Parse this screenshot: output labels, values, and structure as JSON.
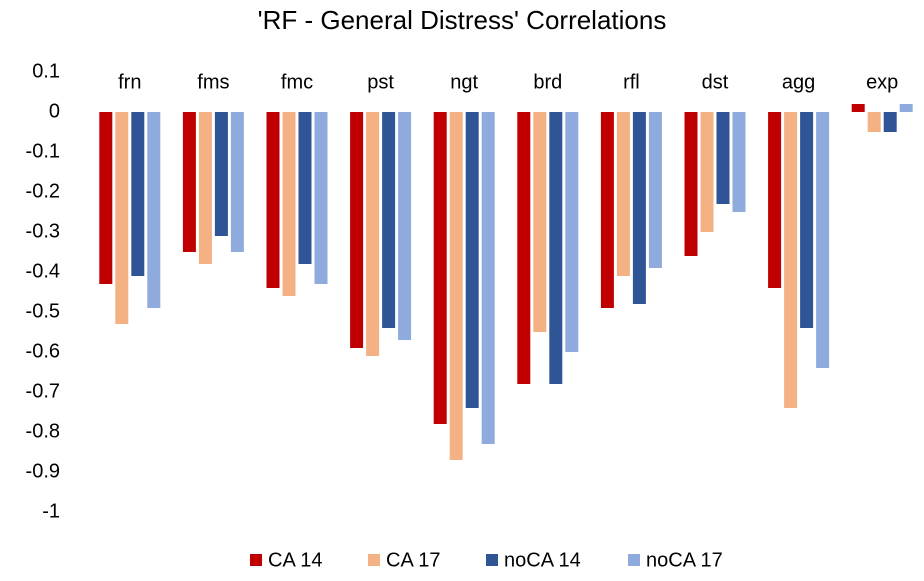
{
  "chart_data": {
    "type": "bar",
    "title": "'RF - General Distress' Correlations",
    "categories": [
      "frn",
      "fms",
      "fmc",
      "pst",
      "ngt",
      "brd",
      "rfl",
      "dst",
      "agg",
      "exp"
    ],
    "series": [
      {
        "name": "CA 14",
        "color": "#c00000",
        "values": [
          -0.43,
          -0.35,
          -0.44,
          -0.59,
          -0.78,
          -0.68,
          -0.49,
          -0.36,
          -0.44,
          0.02
        ]
      },
      {
        "name": "CA 17",
        "color": "#f4b183",
        "values": [
          -0.53,
          -0.38,
          -0.46,
          -0.61,
          -0.87,
          -0.55,
          -0.41,
          -0.3,
          -0.74,
          -0.05
        ]
      },
      {
        "name": "noCA 14",
        "color": "#2f5597",
        "values": [
          -0.41,
          -0.31,
          -0.38,
          -0.54,
          -0.74,
          -0.68,
          -0.48,
          -0.23,
          -0.54,
          -0.05
        ]
      },
      {
        "name": "noCA 17",
        "color": "#8faadc",
        "values": [
          -0.49,
          -0.35,
          -0.43,
          -0.57,
          -0.83,
          -0.6,
          -0.39,
          -0.25,
          -0.64,
          0.02
        ]
      }
    ],
    "ylim": [
      -1,
      0.1
    ],
    "yticks": [
      0.1,
      0,
      -0.1,
      -0.2,
      -0.3,
      -0.4,
      -0.5,
      -0.6,
      -0.7,
      -0.8,
      -0.9,
      -1
    ],
    "grid": false,
    "legend": "bottom"
  }
}
